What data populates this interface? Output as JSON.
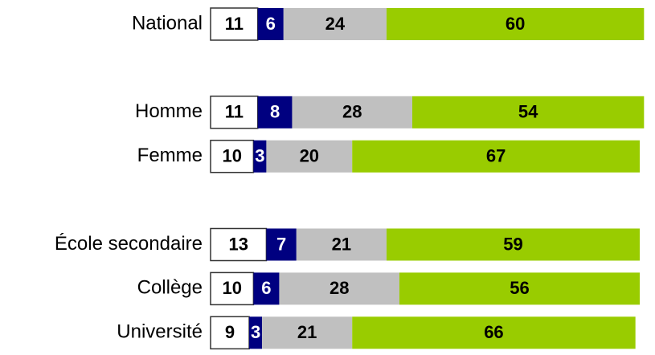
{
  "chart_data": {
    "type": "stacked-bar-horizontal",
    "categories": [
      "National",
      null,
      "Homme",
      "Femme",
      null,
      "École secondaire",
      "Collège",
      "Université"
    ],
    "series": [
      {
        "color": "#ffffff",
        "values": [
          11,
          null,
          11,
          10,
          null,
          13,
          10,
          9
        ]
      },
      {
        "color": "#000080",
        "values": [
          6,
          null,
          8,
          3,
          null,
          7,
          6,
          3
        ]
      },
      {
        "color": "#c0c0c0",
        "values": [
          24,
          null,
          28,
          20,
          null,
          21,
          28,
          21
        ]
      },
      {
        "color": "#99cc00",
        "values": [
          60,
          null,
          54,
          67,
          null,
          59,
          56,
          66
        ]
      }
    ],
    "xlim": [
      0,
      100
    ]
  }
}
